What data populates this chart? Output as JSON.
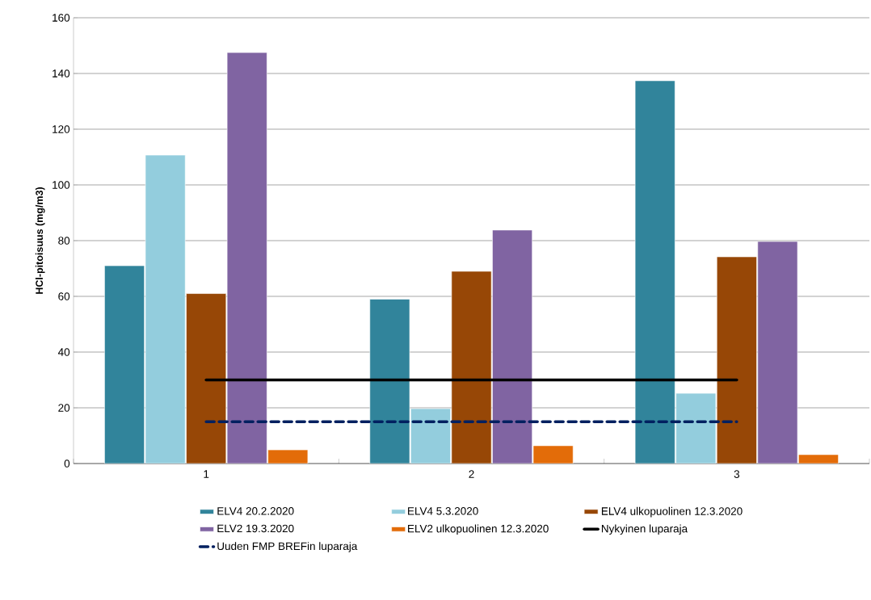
{
  "chart_data": {
    "type": "bar",
    "ylabel": "HCl-pitoisuus (mg/m3)",
    "categories": [
      "1",
      "2",
      "3"
    ],
    "ylim": [
      0,
      160
    ],
    "yticks": [
      0,
      20,
      40,
      60,
      80,
      100,
      120,
      140,
      160
    ],
    "grid": "y",
    "legend": "bottom",
    "series": [
      {
        "name": "ELV4 20.2.2020",
        "color": "#31849b",
        "values": [
          71,
          59,
          137.4
        ]
      },
      {
        "name": "ELV4 5.3.2020",
        "color": "#93cddd",
        "values": [
          110.7,
          19.7,
          25.2
        ]
      },
      {
        "name": "ELV4 ulkopuolinen 12.3.2020",
        "color": "#974706",
        "values": [
          61,
          69,
          74.2
        ]
      },
      {
        "name": "ELV2 19.3.2020",
        "color": "#8064a2",
        "values": [
          147.5,
          83.8,
          79.7
        ]
      },
      {
        "name": "ELV2 ulkopuolinen 12.3.2020",
        "color": "#e36c09",
        "values": [
          4.9,
          6.4,
          3.2
        ]
      },
      {
        "name": "Nykyinen luparaja",
        "type": "line",
        "color": "#000000",
        "line_style": "solid",
        "values": [
          30,
          30,
          30
        ]
      },
      {
        "name": "Uuden FMP BREFin luparaja",
        "type": "line",
        "color": "#002060",
        "line_style": "dashed",
        "values": [
          15,
          15,
          15
        ]
      }
    ]
  }
}
